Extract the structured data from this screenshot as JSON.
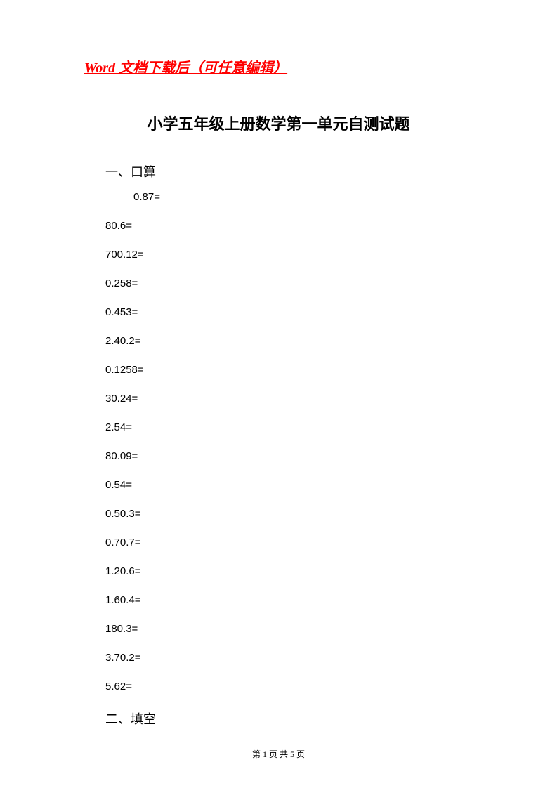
{
  "header": {
    "link_text": "Word 文档下载后（可任意编辑）",
    "link_color": "#ff0000"
  },
  "title": "小学五年级上册数学第一单元自测试题",
  "sections": {
    "section1": {
      "heading": "一、口算",
      "problems": [
        "0.87=",
        "80.6=",
        "700.12=",
        "0.258=",
        "0.453=",
        "2.40.2=",
        "0.1258=",
        "30.24=",
        "2.54=",
        "80.09=",
        "0.54=",
        "0.50.3=",
        "0.70.7=",
        "1.20.6=",
        "1.60.4=",
        "180.3=",
        "3.70.2=",
        "5.62="
      ]
    },
    "section2": {
      "heading": "二、填空"
    }
  },
  "footer": {
    "page_text": "第 1 页 共 5 页",
    "current_page": "1",
    "total_pages": "5"
  },
  "colors": {
    "background": "#ffffff",
    "text": "#000000",
    "link": "#ff0000"
  }
}
